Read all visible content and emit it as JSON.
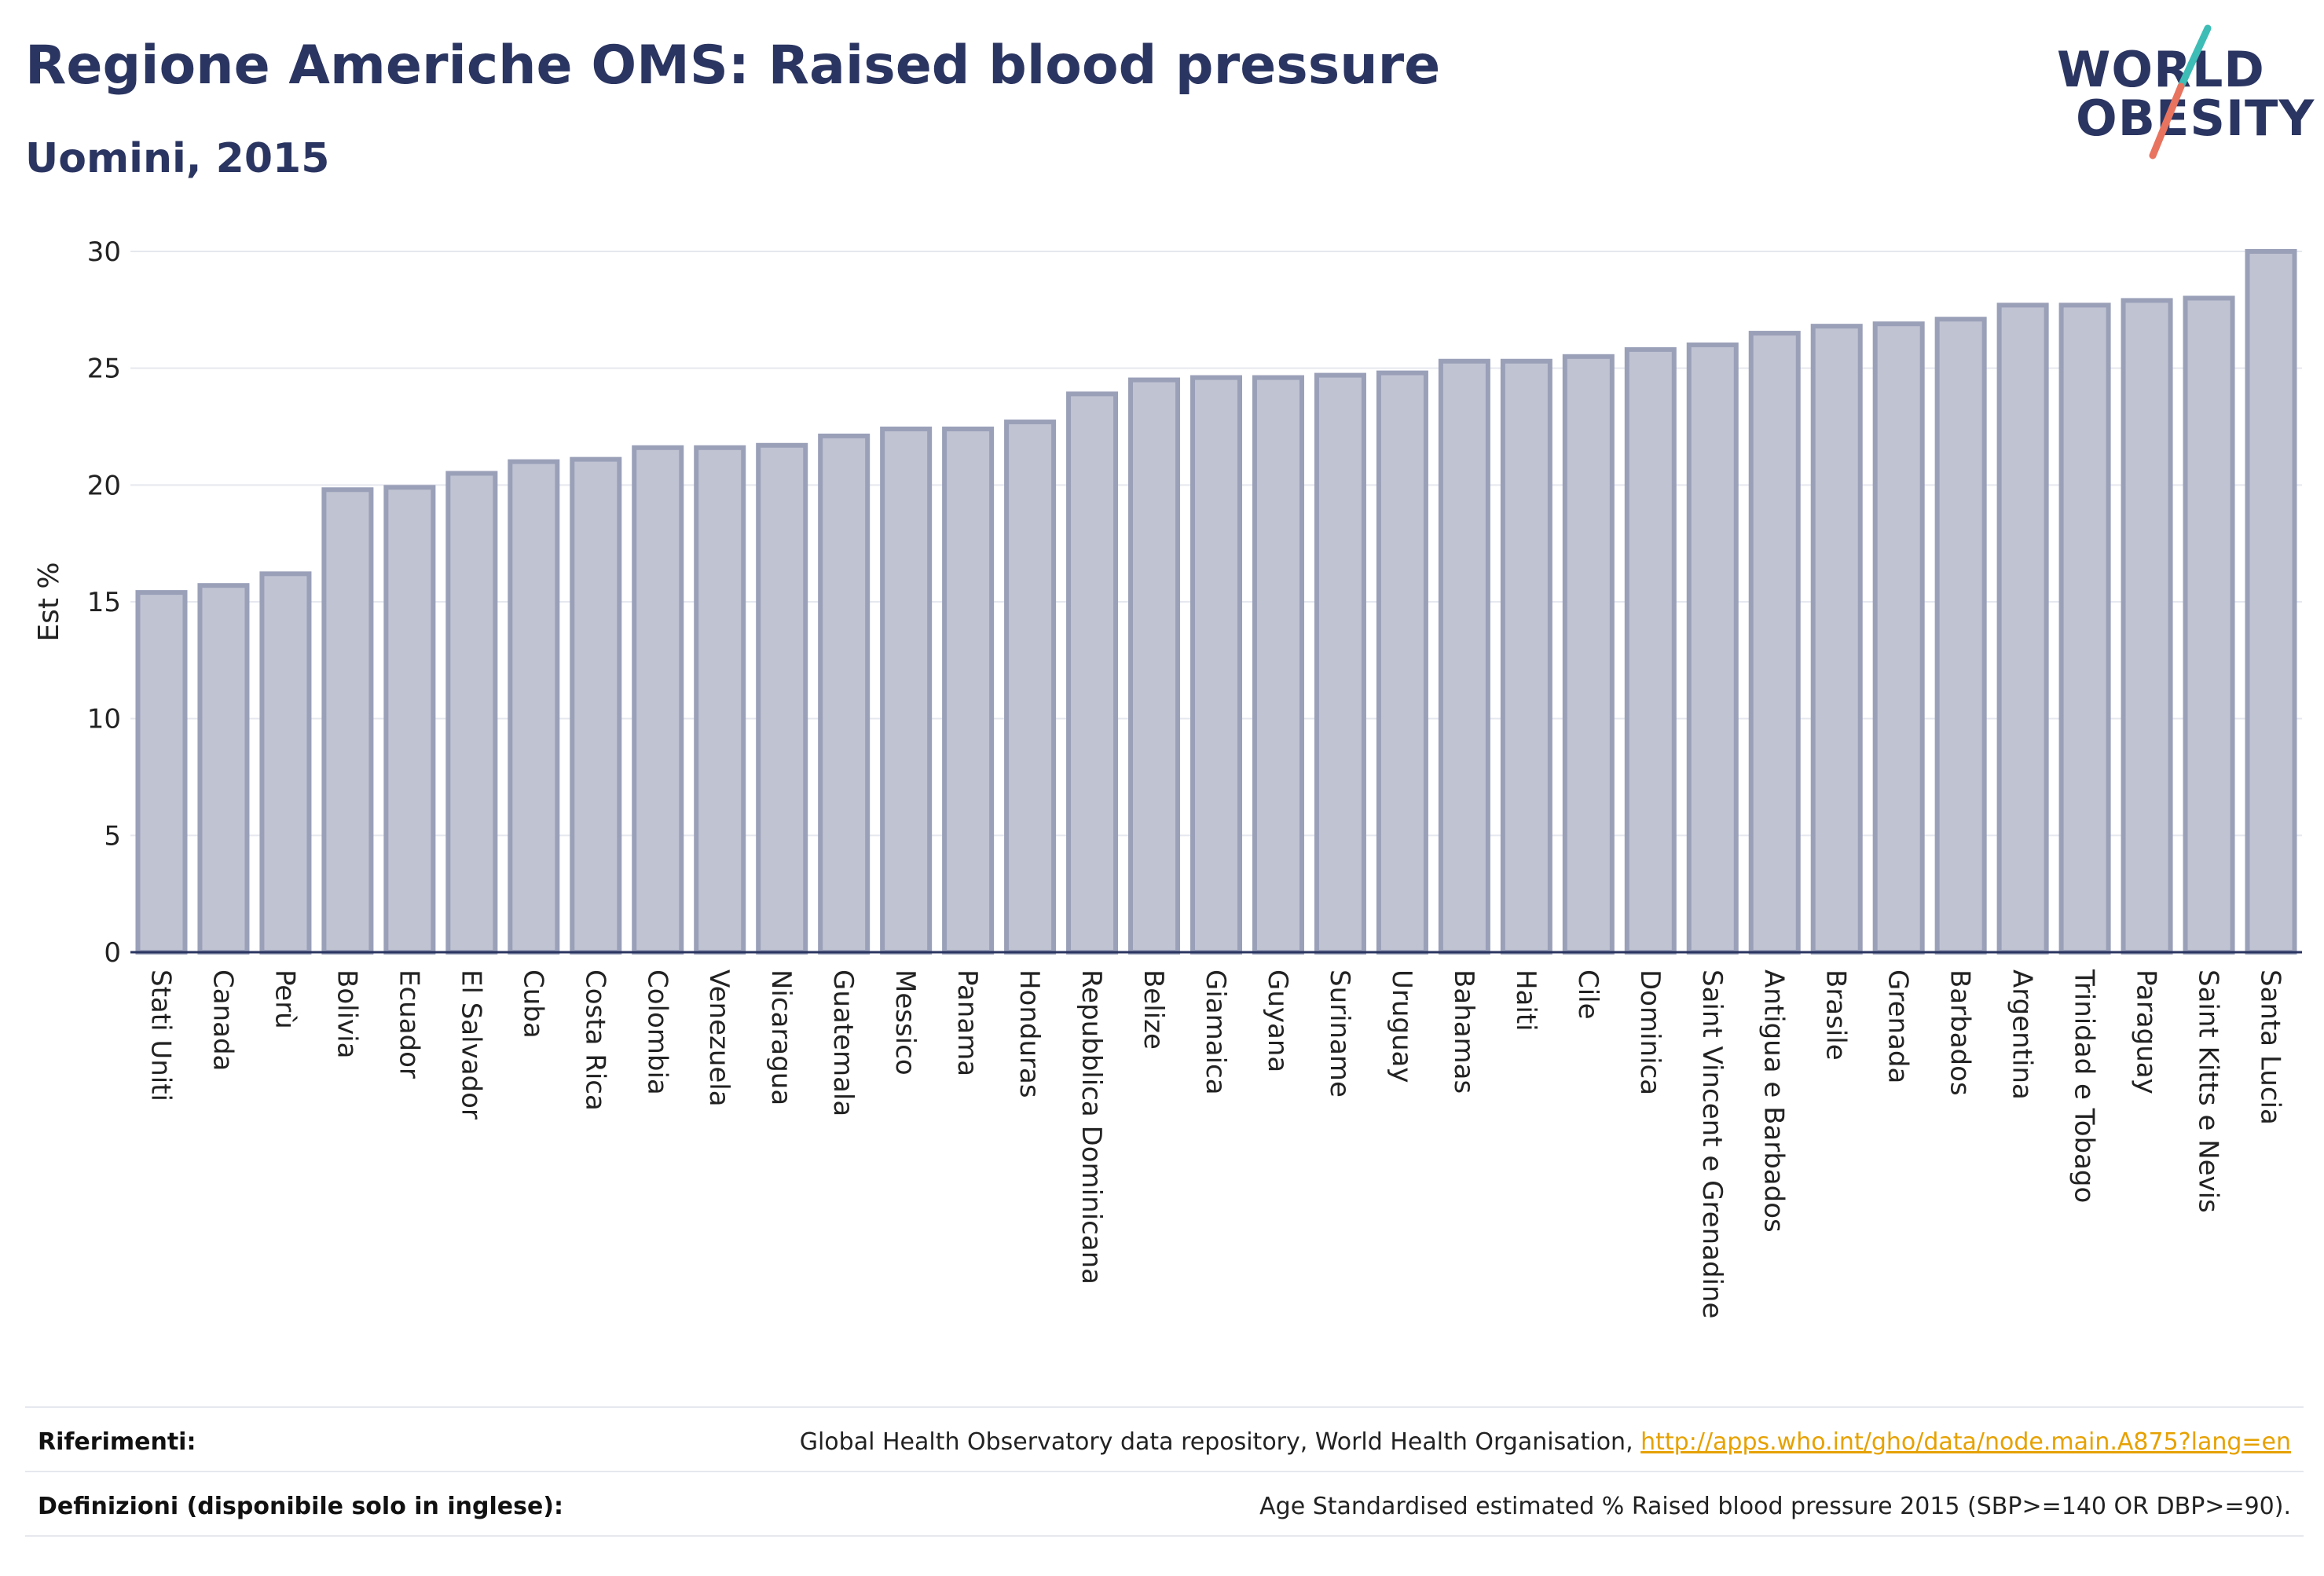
{
  "header": {
    "title": "Regione Americhe OMS: Raised blood pressure",
    "subtitle": "Uomini, 2015"
  },
  "logo": {
    "line1": "WORLD",
    "line2": "OBESITY",
    "colors": {
      "text": "#2b3561",
      "slash_teal": "#3dbdb5",
      "slash_coral": "#e8735f"
    }
  },
  "colors": {
    "bar_fill": "#c0c3d2",
    "bar_stroke": "#9aa0b8",
    "baseline": "#2b3561",
    "grid": "#e6e8ef",
    "title": "#2b3561",
    "link": "#e6a100"
  },
  "chart_data": {
    "type": "bar",
    "ylabel": "Est %",
    "xlabel": "",
    "ylim": [
      0,
      30
    ],
    "yticks": [
      0,
      5,
      10,
      15,
      20,
      25,
      30
    ],
    "grid": true,
    "categories": [
      "Stati Uniti",
      "Canada",
      "Perù",
      "Bolivia",
      "Ecuador",
      "El Salvador",
      "Cuba",
      "Costa Rica",
      "Colombia",
      "Venezuela",
      "Nicaragua",
      "Guatemala",
      "Messico",
      "Panama",
      "Honduras",
      "Repubblica Dominicana",
      "Belize",
      "Giamaica",
      "Guyana",
      "Suriname",
      "Uruguay",
      "Bahamas",
      "Haiti",
      "Cile",
      "Dominica",
      "Saint Vincent e Grenadine",
      "Antigua e Barbados",
      "Brasile",
      "Grenada",
      "Barbados",
      "Argentina",
      "Trinidad e Tobago",
      "Paraguay",
      "Saint Kitts e Nevis",
      "Santa Lucia"
    ],
    "values": [
      15.4,
      15.7,
      16.2,
      19.8,
      19.9,
      20.5,
      21.0,
      21.1,
      21.6,
      21.6,
      21.7,
      22.1,
      22.4,
      22.4,
      22.7,
      23.9,
      24.5,
      24.6,
      24.6,
      24.7,
      24.8,
      25.3,
      25.3,
      25.5,
      25.8,
      26.0,
      26.5,
      26.8,
      26.9,
      27.1,
      27.7,
      27.7,
      27.9,
      28.0,
      30.0
    ]
  },
  "footer": {
    "references_label": "Riferimenti:",
    "references_text": "Global Health Observatory data repository, World Health Organisation, ",
    "references_link": "http://apps.who.int/gho/data/node.main.A875?lang=en",
    "definitions_label": "Definizioni (disponibile solo in inglese):",
    "definitions_text": "Age Standardised estimated % Raised blood pressure 2015 (SBP>=140 OR DBP>=90)."
  }
}
